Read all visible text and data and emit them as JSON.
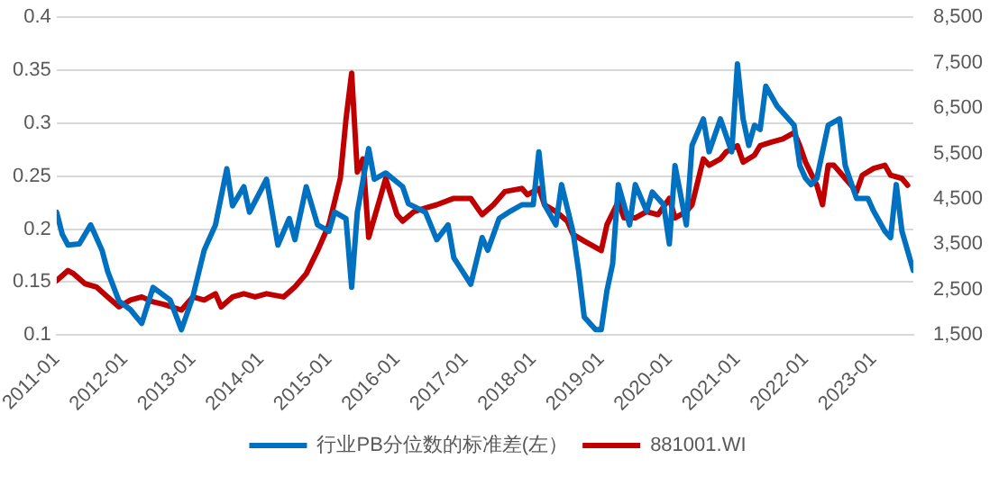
{
  "chart_data": {
    "type": "line",
    "xlim": [
      "2011-01",
      "2023-08"
    ],
    "xticks": [
      "2011-01",
      "2012-01",
      "2013-01",
      "2014-01",
      "2015-01",
      "2016-01",
      "2017-01",
      "2018-01",
      "2019-01",
      "2020-01",
      "2021-01",
      "2022-01",
      "2023-01"
    ],
    "ylim": [
      0.1,
      0.4
    ],
    "yticks": [
      0.1,
      0.15,
      0.2,
      0.25,
      0.3,
      0.35,
      0.4
    ],
    "y2lim": [
      1500,
      8500
    ],
    "y2ticks": [
      {
        "value": 1500,
        "label": "1,500"
      },
      {
        "value": 2500,
        "label": "2,500"
      },
      {
        "value": 3500,
        "label": "3,500"
      },
      {
        "value": 4500,
        "label": "4,500"
      },
      {
        "value": 5500,
        "label": "5,500"
      },
      {
        "value": 6500,
        "label": "6,500"
      },
      {
        "value": 7500,
        "label": "7,500"
      },
      {
        "value": 8500,
        "label": "8,500"
      }
    ],
    "grid": "y",
    "legend": "bottom",
    "marker": "none",
    "line_style": "solid",
    "series": [
      {
        "name": "行业PB分位数的标准差(左）",
        "color": "#0070c0",
        "x": [
          "2011-01",
          "2011-02",
          "2011-03",
          "2011-05",
          "2011-07",
          "2011-09",
          "2011-10",
          "2011-12",
          "2012-02",
          "2012-04",
          "2012-06",
          "2012-09",
          "2012-11",
          "2013-01",
          "2013-03",
          "2013-05",
          "2013-07",
          "2013-08",
          "2013-10",
          "2013-11",
          "2014-02",
          "2014-04",
          "2014-06",
          "2014-07",
          "2014-09",
          "2014-11",
          "2015-01",
          "2015-02",
          "2015-04",
          "2015-05",
          "2015-06",
          "2015-08",
          "2015-09",
          "2015-11",
          "2016-02",
          "2016-03",
          "2016-06",
          "2016-08",
          "2016-10",
          "2016-11",
          "2017-02",
          "2017-04",
          "2017-05",
          "2017-07",
          "2017-09",
          "2017-11",
          "2018-01",
          "2018-02",
          "2018-03",
          "2018-05",
          "2018-06",
          "2018-08",
          "2018-09",
          "2018-10",
          "2018-12",
          "2019-01",
          "2019-02",
          "2019-03",
          "2019-04",
          "2019-06",
          "2019-07",
          "2019-09",
          "2019-10",
          "2019-12",
          "2020-01",
          "2020-02",
          "2020-04",
          "2020-05",
          "2020-07",
          "2020-08",
          "2020-10",
          "2020-12",
          "2021-01",
          "2021-02",
          "2021-03",
          "2021-04",
          "2021-05",
          "2021-06",
          "2021-08",
          "2021-11",
          "2021-12",
          "2022-01",
          "2022-02",
          "2022-03",
          "2022-05",
          "2022-07",
          "2022-08",
          "2022-10",
          "2022-12",
          "2023-01",
          "2023-03",
          "2023-04",
          "2023-05",
          "2023-06",
          "2023-08"
        ],
        "values": [
          0.216,
          0.195,
          0.185,
          0.186,
          0.204,
          0.18,
          0.16,
          0.132,
          0.124,
          0.111,
          0.145,
          0.133,
          0.105,
          0.136,
          0.18,
          0.204,
          0.257,
          0.222,
          0.24,
          0.216,
          0.247,
          0.185,
          0.21,
          0.19,
          0.24,
          0.204,
          0.198,
          0.216,
          0.21,
          0.145,
          0.216,
          0.276,
          0.247,
          0.253,
          0.24,
          0.224,
          0.216,
          0.19,
          0.204,
          0.173,
          0.148,
          0.192,
          0.18,
          0.21,
          0.217,
          0.223,
          0.223,
          0.273,
          0.223,
          0.204,
          0.242,
          0.198,
          0.161,
          0.117,
          0.105,
          0.105,
          0.142,
          0.167,
          0.242,
          0.204,
          0.242,
          0.217,
          0.235,
          0.223,
          0.186,
          0.26,
          0.204,
          0.279,
          0.304,
          0.273,
          0.304,
          0.273,
          0.356,
          0.304,
          0.279,
          0.298,
          0.294,
          0.335,
          0.316,
          0.298,
          0.26,
          0.248,
          0.242,
          0.248,
          0.298,
          0.304,
          0.26,
          0.229,
          0.229,
          0.217,
          0.198,
          0.192,
          0.242,
          0.198,
          0.161
        ]
      },
      {
        "name": "881001.WI",
        "color": "#c00000",
        "axis": "y2",
        "x": [
          "2011-01",
          "2011-03",
          "2011-04",
          "2011-06",
          "2011-08",
          "2011-10",
          "2011-12",
          "2012-02",
          "2012-04",
          "2012-06",
          "2012-08",
          "2012-11",
          "2013-01",
          "2013-03",
          "2013-05",
          "2013-06",
          "2013-08",
          "2013-10",
          "2013-12",
          "2014-02",
          "2014-05",
          "2014-07",
          "2014-09",
          "2014-11",
          "2015-01",
          "2015-03",
          "2015-04",
          "2015-05",
          "2015-06",
          "2015-07",
          "2015-08",
          "2015-10",
          "2015-11",
          "2016-01",
          "2016-02",
          "2016-04",
          "2016-06",
          "2016-08",
          "2016-11",
          "2017-02",
          "2017-04",
          "2017-06",
          "2017-08",
          "2017-11",
          "2017-12",
          "2018-02",
          "2018-03",
          "2018-05",
          "2018-07",
          "2018-08",
          "2018-10",
          "2018-12",
          "2019-01",
          "2019-02",
          "2019-04",
          "2019-05",
          "2019-07",
          "2019-09",
          "2019-11",
          "2020-01",
          "2020-02",
          "2020-04",
          "2020-05",
          "2020-07",
          "2020-08",
          "2020-10",
          "2020-11",
          "2021-01",
          "2021-02",
          "2021-04",
          "2021-05",
          "2021-07",
          "2021-09",
          "2021-11",
          "2021-12",
          "2022-01",
          "2022-03",
          "2022-04",
          "2022-05",
          "2022-06",
          "2022-08",
          "2022-10",
          "2022-11",
          "2023-01",
          "2023-03",
          "2023-04",
          "2023-06",
          "2023-07"
        ],
        "values": [
          2700,
          2920,
          2850,
          2630,
          2560,
          2340,
          2120,
          2270,
          2340,
          2230,
          2170,
          2050,
          2340,
          2270,
          2410,
          2120,
          2340,
          2410,
          2340,
          2410,
          2340,
          2560,
          2850,
          3360,
          3930,
          4950,
          6250,
          7270,
          5090,
          5380,
          3650,
          4510,
          4950,
          4150,
          4010,
          4220,
          4300,
          4370,
          4510,
          4510,
          4150,
          4370,
          4660,
          4730,
          4590,
          4730,
          4370,
          4220,
          4010,
          3720,
          3570,
          3430,
          3360,
          3930,
          4440,
          4080,
          4080,
          4220,
          4150,
          4510,
          4080,
          4220,
          4370,
          5380,
          5240,
          5380,
          5530,
          5670,
          5310,
          5460,
          5670,
          5750,
          5820,
          5960,
          5670,
          5310,
          4800,
          4370,
          5240,
          5240,
          4950,
          4660,
          5020,
          5170,
          5240,
          5020,
          4950,
          4800
        ]
      }
    ]
  }
}
